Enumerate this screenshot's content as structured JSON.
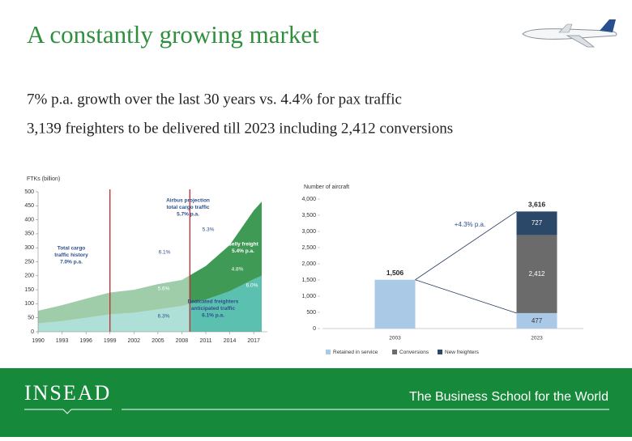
{
  "title": "A constantly growing market",
  "bullets": [
    "7% p.a. growth over the last 30 years vs. 4.4% for pax traffic",
    "3,139 freighters to be delivered till 2023 including 2,412 conversions"
  ],
  "footer": {
    "brand": "INSEAD",
    "tagline": "The Business School for the World"
  },
  "chart_data": [
    {
      "type": "area",
      "ylabel": "FTKs (billion)",
      "x": [
        1990,
        1993,
        1996,
        1999,
        2002,
        2005,
        2008,
        2011,
        2014,
        2017,
        2018
      ],
      "series": [
        {
          "color": "#5cc0b0",
          "values": [
            30,
            38,
            50,
            62,
            68,
            80,
            92,
            115,
            145,
            188,
            200
          ]
        },
        {
          "color": "#3f9a55",
          "values": [
            45,
            57,
            68,
            78,
            82,
            90,
            93,
            120,
            165,
            245,
            265
          ]
        }
      ],
      "xlim": [
        1990,
        2018
      ],
      "xticks": [
        1990,
        1993,
        1996,
        1999,
        2002,
        2005,
        2008,
        2011,
        2014,
        2017
      ],
      "ylim": [
        0,
        500
      ],
      "yticks": [
        0,
        50,
        100,
        150,
        200,
        250,
        300,
        350,
        400,
        450,
        500
      ],
      "highlight_years": [
        1999,
        2009
      ],
      "highlight_color": "#c0282d",
      "annotations": [
        {
          "lines": [
            "Airbus projection",
            "total cargo traffic",
            "5.7% p.a."
          ]
        },
        {
          "lines": [
            "5.3%"
          ]
        },
        {
          "lines": [
            "Total cargo",
            "traffic history",
            "7.0% p.a."
          ]
        },
        {
          "lines": [
            "6.1%"
          ]
        },
        {
          "lines": [
            "Belly freight",
            "5.4% p.a."
          ]
        },
        {
          "lines": [
            "4.8%"
          ]
        },
        {
          "lines": [
            "5.6%"
          ]
        },
        {
          "lines": [
            "6.0%"
          ]
        },
        {
          "lines": [
            "6.3%"
          ]
        },
        {
          "lines": [
            "Dedicated freighters",
            "anticipated traffic",
            "6.1% p.a."
          ]
        }
      ]
    },
    {
      "type": "stacked_bar",
      "ylabel": "Number of aircraft",
      "categories": [
        "2003",
        "2023"
      ],
      "series": [
        {
          "name": "Retained in service",
          "color": "#a9c9e6",
          "values": [
            1506,
            477
          ],
          "value_labels": [
            null,
            "477"
          ]
        },
        {
          "name": "Conversions",
          "color": "#6b6b6b",
          "values": [
            null,
            2412
          ],
          "value_labels": [
            null,
            "2,412"
          ]
        },
        {
          "name": "New freighters",
          "color": "#2c4868",
          "values": [
            null,
            727
          ],
          "value_labels": [
            null,
            "727"
          ]
        }
      ],
      "totals": [
        1506,
        3616
      ],
      "total_labels": [
        "1,506",
        "3,616"
      ],
      "annotation": "+4.3% p.a.",
      "ylim": [
        0,
        4000
      ],
      "yticks": [
        0,
        500,
        {
          "value": 1000,
          "label": "1,000"
        },
        {
          "value": 1500,
          "label": "1,500"
        },
        {
          "value": 2000,
          "label": "2,000"
        },
        {
          "value": 2500,
          "label": "2,500"
        },
        {
          "value": 3000,
          "label": "3,000"
        },
        {
          "value": 3500,
          "label": "3,500"
        },
        {
          "value": 4000,
          "label": "4,000"
        }
      ]
    }
  ]
}
